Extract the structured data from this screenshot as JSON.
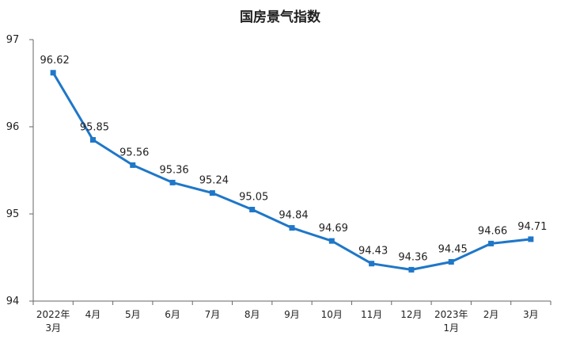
{
  "chart_data": {
    "type": "line",
    "title": "国房景气指数",
    "xlabel": "",
    "ylabel": "",
    "categories": [
      [
        "2022年",
        "3月"
      ],
      [
        "4月"
      ],
      [
        "5月"
      ],
      [
        "6月"
      ],
      [
        "7月"
      ],
      [
        "8月"
      ],
      [
        "9月"
      ],
      [
        "10月"
      ],
      [
        "11月"
      ],
      [
        "12月"
      ],
      [
        "2023年",
        "1月"
      ],
      [
        "2月"
      ],
      [
        "3月"
      ]
    ],
    "series": [
      {
        "values": [
          96.62,
          95.85,
          95.56,
          95.36,
          95.24,
          95.05,
          94.84,
          94.69,
          94.43,
          94.36,
          94.45,
          94.66,
          94.71
        ],
        "color": "#1f77c8"
      }
    ],
    "data_labels": [
      "96.62",
      "95.85",
      "95.56",
      "95.36",
      "95.24",
      "95.05",
      "94.84",
      "94.69",
      "94.43",
      "94.36",
      "94.45",
      "94.66",
      "94.71"
    ],
    "ylim": [
      94,
      97
    ],
    "yticks": [
      94,
      95,
      96,
      97
    ],
    "grid": false,
    "legend": "none",
    "marker": "square"
  }
}
